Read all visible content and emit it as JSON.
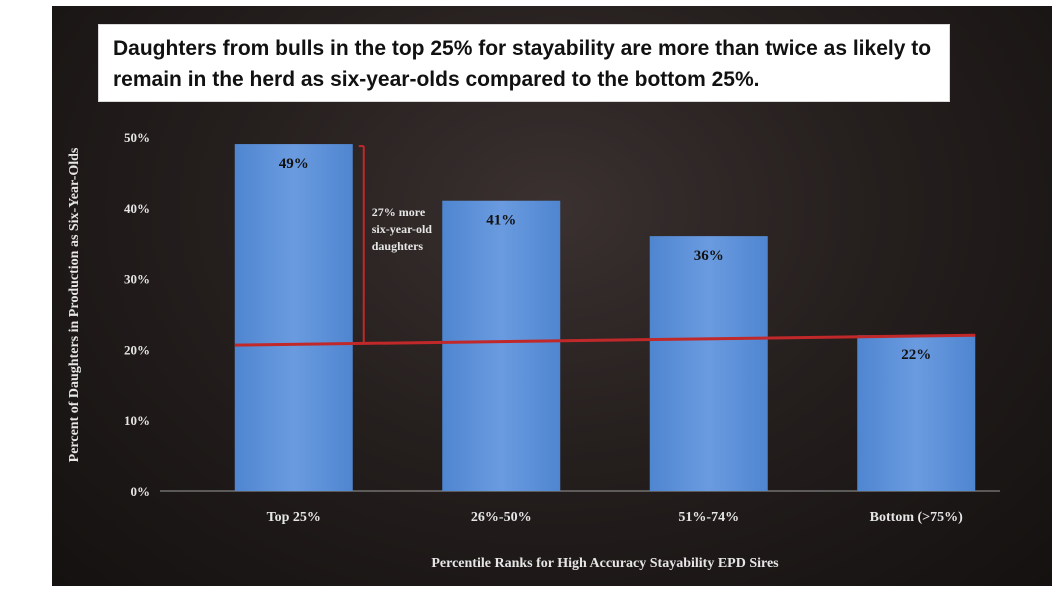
{
  "chart_data": {
    "type": "bar",
    "title": "Daughters from bulls in the top 25% for stayability are more than twice as likely to remain in the herd as six-year-olds compared to the bottom 25%.",
    "xlabel": "Percentile Ranks for High Accuracy Stayability EPD Sires",
    "ylabel": "Percent of Daughters in Production as Six-Year-Olds",
    "categories": [
      "Top 25%",
      "26%-50%",
      "51%-74%",
      "Bottom (>75%)"
    ],
    "values": [
      49,
      41,
      36,
      22
    ],
    "data_labels": [
      "49%",
      "41%",
      "36%",
      "22%"
    ],
    "ylim": [
      0,
      50
    ],
    "yticks": [
      0,
      10,
      20,
      30,
      40,
      50
    ],
    "ytick_labels": [
      "0%",
      "10%",
      "20%",
      "30%",
      "40%",
      "50%"
    ],
    "grid": false,
    "annotation": {
      "lines": [
        "27% more",
        "six-year-old",
        "daughters"
      ],
      "from_value": 49,
      "to_value": 22,
      "reference_line_value": 22
    },
    "colors": {
      "bar": "#5b8fd6",
      "reference_line": "#c0282a",
      "background": "#221c1b",
      "text": "#e6e6e6"
    }
  }
}
